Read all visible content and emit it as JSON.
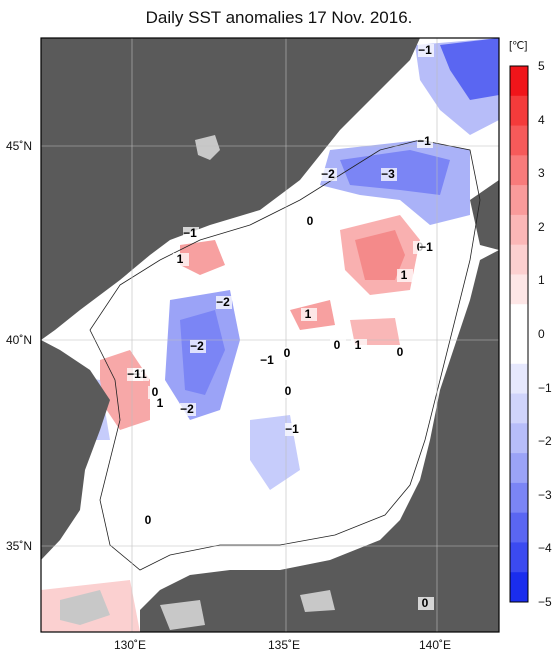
{
  "title": "Daily SST anomalies 17 Nov. 2016.",
  "colors": {
    "land": "#5a5a5a",
    "land_light": "#c8c8c8",
    "sea_white": "#ffffff",
    "grid": "#cfcfcf"
  },
  "axes": {
    "lat_labels": [
      "45˚N",
      "40˚N",
      "35˚N"
    ],
    "lon_labels": [
      "130˚E",
      "135˚E",
      "140˚E"
    ]
  },
  "colorbar": {
    "unit": "[℃]",
    "ticks": [
      "5",
      "4",
      "3",
      "2",
      "1",
      "0",
      "−1",
      "−2",
      "−3",
      "−4",
      "−5"
    ],
    "colors": [
      "#f0151a",
      "#f43b3b",
      "#f65a5a",
      "#f87b7b",
      "#f99b9b",
      "#fbb7b7",
      "#fcd0d0",
      "#fde6e6",
      "#ffffff",
      "#ffffff",
      "#e6e8fd",
      "#d0d4fb",
      "#b7bdf9",
      "#9ba3f7",
      "#7b85f5",
      "#5a66f2",
      "#3b4af0",
      "#1a2dee"
    ]
  },
  "contour_labels": [
    {
      "text": "−1"
    },
    {
      "text": "−1"
    },
    {
      "text": "−2"
    },
    {
      "text": "−3"
    },
    {
      "text": "0"
    },
    {
      "text": "−1"
    },
    {
      "text": "1"
    },
    {
      "text": "0"
    },
    {
      "text": "−1"
    },
    {
      "text": "1"
    },
    {
      "text": "−2"
    },
    {
      "text": "1"
    },
    {
      "text": "−2"
    },
    {
      "text": "0"
    },
    {
      "text": "1"
    },
    {
      "text": "0"
    },
    {
      "text": "0"
    },
    {
      "text": "−1"
    },
    {
      "text": "0"
    },
    {
      "text": "−1"
    },
    {
      "text": "−1"
    },
    {
      "text": "0"
    },
    {
      "text": "1"
    },
    {
      "text": "−2"
    },
    {
      "text": "0"
    },
    {
      "text": "−1"
    },
    {
      "text": "0"
    },
    {
      "text": "0"
    }
  ]
}
